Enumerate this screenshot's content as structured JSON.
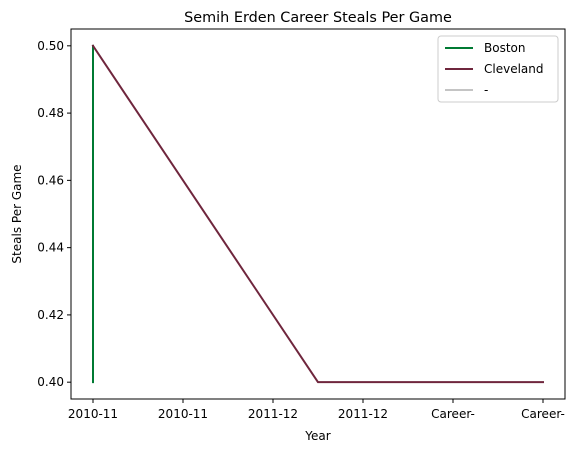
{
  "chart_data": {
    "type": "line",
    "title": "Semih Erden Career Steals Per Game",
    "xlabel": "Year",
    "ylabel": "Steals Per Game",
    "categories": [
      "2010-11",
      "2010-11",
      "2011-12",
      "2011-12",
      "Career-",
      "Career-"
    ],
    "ylim": [
      0.395,
      0.505
    ],
    "yticks": [
      "0.40",
      "0.42",
      "0.44",
      "0.46",
      "0.48",
      "0.50"
    ],
    "grid": false,
    "legend_position": "top-right",
    "series": [
      {
        "name": "Boston",
        "color": "#007A33",
        "points": [
          [
            0,
            0.5
          ],
          [
            0,
            0.4
          ]
        ]
      },
      {
        "name": "Cleveland",
        "color": "#6F263D",
        "points": [
          [
            0,
            0.5
          ],
          [
            2.5,
            0.4
          ],
          [
            3,
            0.4
          ],
          [
            4,
            0.4
          ],
          [
            5,
            0.4
          ]
        ]
      },
      {
        "name": "-",
        "color": "#C4C4C4",
        "points": []
      }
    ]
  }
}
